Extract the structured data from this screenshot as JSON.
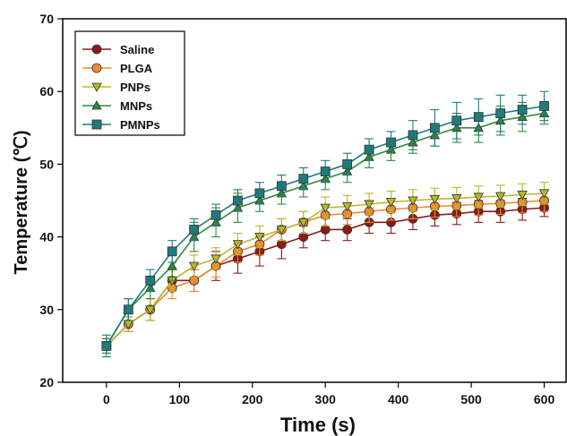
{
  "chart_data": {
    "type": "line",
    "xlabel": "Time (s)",
    "ylabel": "Temperature (℃)",
    "xlim": [
      -60,
      630
    ],
    "ylim": [
      20,
      70
    ],
    "xticks": [
      0,
      100,
      200,
      300,
      400,
      500,
      600
    ],
    "yticks": [
      20,
      30,
      40,
      50,
      60,
      70
    ],
    "x_tick_labels": [
      "0",
      "100",
      "200",
      "300",
      "400",
      "500",
      "600"
    ],
    "y_tick_labels": [
      "20",
      "30",
      "40",
      "50",
      "60",
      "70"
    ],
    "grid": false,
    "legend_position": "top-left",
    "x": [
      0,
      30,
      60,
      90,
      120,
      150,
      180,
      210,
      240,
      270,
      300,
      330,
      360,
      390,
      420,
      450,
      480,
      510,
      540,
      570,
      600
    ],
    "series": [
      {
        "name": "Saline",
        "color": "#8B1A1A",
        "marker": "circle",
        "values": [
          25,
          28,
          30,
          34,
          34,
          36,
          37,
          38,
          39,
          40,
          41,
          41,
          42,
          42,
          42.5,
          43,
          43.2,
          43.5,
          43.5,
          43.8,
          44
        ],
        "errors": [
          1,
          1,
          1.5,
          1.5,
          1.5,
          2,
          2,
          2,
          2,
          1.5,
          1.5,
          1.5,
          1.5,
          1.5,
          1.5,
          1.5,
          1.5,
          1.5,
          1.5,
          1.5,
          1.2
        ]
      },
      {
        "name": "PLGA",
        "color": "#F08A30",
        "marker": "circle",
        "values": [
          25,
          28,
          30,
          33,
          34,
          36,
          38,
          39,
          41,
          42,
          43,
          43.2,
          43.5,
          43.8,
          44,
          44.2,
          44.3,
          44.5,
          44.6,
          44.8,
          45
        ],
        "errors": [
          1,
          1,
          1.5,
          1.5,
          1.5,
          1.5,
          1.5,
          1.5,
          1.5,
          1.5,
          1.5,
          1.5,
          1.5,
          1.5,
          1.5,
          1.5,
          1.5,
          1.5,
          1.5,
          1.5,
          1.5
        ]
      },
      {
        "name": "PNPs",
        "color": "#B8B82A",
        "marker": "triangle-down",
        "values": [
          25,
          28,
          30,
          34,
          36,
          37,
          39,
          40,
          41,
          42,
          44,
          44.2,
          44.5,
          44.8,
          45,
          45.2,
          45.3,
          45.5,
          45.6,
          45.8,
          46
        ],
        "errors": [
          1,
          1,
          1.5,
          1.5,
          1.5,
          1.5,
          1.5,
          1.5,
          1.5,
          1.5,
          1.5,
          1.5,
          1.5,
          1.5,
          1.5,
          1.5,
          1.5,
          1.5,
          1.5,
          1.5,
          1.5
        ]
      },
      {
        "name": "MNPs",
        "color": "#2E8B3A",
        "marker": "triangle-up",
        "values": [
          25,
          30,
          33,
          36,
          40,
          42,
          44,
          45,
          46,
          47,
          48,
          49,
          51,
          52,
          53,
          54,
          55,
          55,
          56,
          56.5,
          57
        ],
        "errors": [
          1,
          1.5,
          1.5,
          2,
          2,
          2,
          2,
          1.5,
          1.5,
          1.5,
          1.5,
          1.5,
          1.5,
          1.5,
          1.5,
          1.5,
          2,
          2,
          2,
          2,
          1.5
        ]
      },
      {
        "name": "PMNPs",
        "color": "#1F7A7A",
        "marker": "square",
        "values": [
          25,
          30,
          34,
          38,
          41,
          43,
          45,
          46,
          47,
          48,
          49,
          50,
          52,
          53,
          54,
          55,
          56,
          56.5,
          57,
          57.5,
          58
        ],
        "errors": [
          1.5,
          1.5,
          1.5,
          1.5,
          1.5,
          1.5,
          1.5,
          1.5,
          1.5,
          1.5,
          1.5,
          1.5,
          1.5,
          1.5,
          2,
          2.5,
          2.5,
          2.5,
          2.5,
          2,
          2
        ]
      }
    ]
  }
}
